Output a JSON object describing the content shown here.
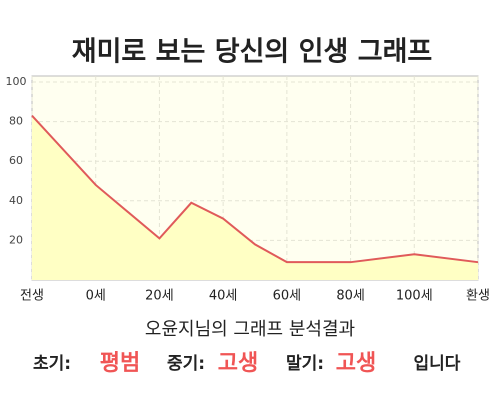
{
  "chart_data": {
    "type": "area",
    "title": "재미로 보는 당신의 인생 그래프",
    "x": [
      -20,
      0,
      20,
      30,
      40,
      50,
      60,
      80,
      100,
      120
    ],
    "values": [
      83,
      48,
      21,
      39,
      31,
      18,
      9,
      9,
      13,
      9
    ],
    "color": "#e05a5a",
    "fill": "#ffffc4",
    "xlim": [
      -20,
      120
    ],
    "xticks": [
      {
        "value": -20,
        "label": "전생"
      },
      {
        "value": 0,
        "label": "0세"
      },
      {
        "value": 20,
        "label": "20세"
      },
      {
        "value": 40,
        "label": "40세"
      },
      {
        "value": 60,
        "label": "60세"
      },
      {
        "value": 80,
        "label": "80세"
      },
      {
        "value": 100,
        "label": "100세"
      },
      {
        "value": 120,
        "label": "환생"
      }
    ],
    "ylim": [
      0,
      100
    ],
    "yticks": [
      20,
      40,
      60,
      80,
      100
    ],
    "grid": true
  },
  "result": {
    "heading": "오윤지님의 그래프 분석결과",
    "parts": [
      {
        "text": "초기:",
        "red": false
      },
      {
        "text": "평범",
        "red": true
      },
      {
        "text": "중기:",
        "red": false
      },
      {
        "text": "고생",
        "red": true
      },
      {
        "text": "말기:",
        "red": false
      },
      {
        "text": "고생",
        "red": true
      },
      {
        "text": "입니다",
        "red": false
      }
    ]
  }
}
